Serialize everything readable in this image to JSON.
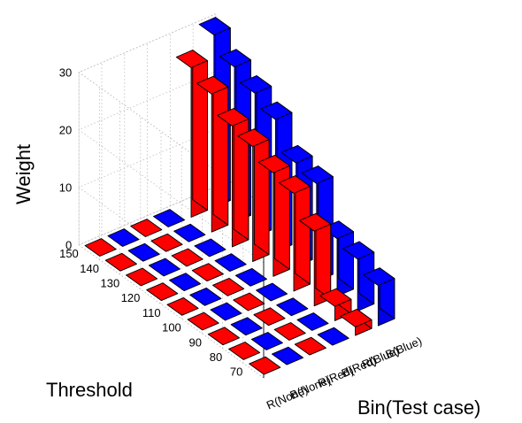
{
  "chart_data": {
    "type": "bar3d",
    "title": "",
    "xlabel": "Bin(Test case)",
    "ylabel": "Threshold",
    "zlabel": "Weight",
    "zlim": [
      0,
      30
    ],
    "zticks": [
      "0",
      "10",
      "20",
      "30"
    ],
    "bins": [
      "R(None)",
      "B(None)",
      "R(Red)",
      "B(Red)",
      "R(Blue)",
      "B(Blue)"
    ],
    "thresholds": [
      "70",
      "80",
      "90",
      "100",
      "110",
      "120",
      "130",
      "140",
      "150"
    ],
    "bin_colors": [
      "#ff0000",
      "#0000ff",
      "#ff0000",
      "#0000ff",
      "#ff0000",
      "#0000ff"
    ],
    "values": [
      [
        0,
        0,
        0,
        0,
        0,
        0,
        0,
        0,
        0
      ],
      [
        0,
        0,
        0,
        0,
        0,
        0,
        0,
        0,
        0
      ],
      [
        0,
        0,
        0,
        0,
        0,
        0,
        0,
        0,
        0
      ],
      [
        0,
        0,
        0,
        0,
        0,
        0,
        0,
        0,
        0
      ],
      [
        1.5,
        2.5,
        13,
        17,
        18,
        20,
        21,
        24,
        26
      ],
      [
        7,
        9,
        10,
        17,
        18,
        23,
        25,
        27,
        30
      ]
    ]
  }
}
